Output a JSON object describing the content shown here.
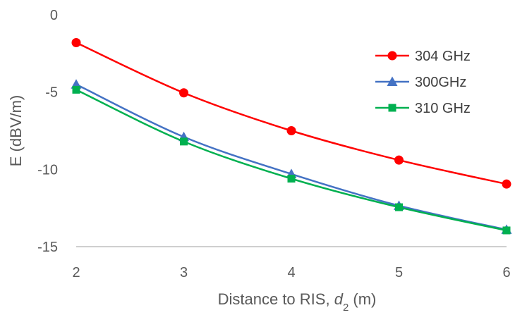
{
  "chart_data": {
    "type": "line",
    "title": "",
    "xlabel": "Distance to RIS, d2 (m)",
    "xlabel_parts": {
      "prefix": "Distance to RIS, ",
      "var": "d",
      "sub": "2",
      "suffix": " (m)"
    },
    "ylabel": "E (dBV/m)",
    "x": [
      2,
      3,
      4,
      5,
      6
    ],
    "xlim": [
      2,
      6
    ],
    "ylim": [
      -15,
      0
    ],
    "yticks": [
      0,
      -5,
      -10,
      -15
    ],
    "xticks": [
      2,
      3,
      4,
      5,
      6
    ],
    "grid": false,
    "legend_position": "top-right",
    "series": [
      {
        "name": "304 GHz",
        "color": "#ff0000",
        "marker": "circle",
        "values": [
          -1.8,
          -5.05,
          -7.5,
          -9.4,
          -10.95
        ]
      },
      {
        "name": "300GHz",
        "color": "#4472c4",
        "marker": "triangle",
        "values": [
          -4.5,
          -7.9,
          -10.3,
          -12.35,
          -13.9
        ]
      },
      {
        "name": "310 GHz",
        "color": "#00b050",
        "marker": "square",
        "values": [
          -4.85,
          -8.2,
          -10.6,
          -12.45,
          -13.95
        ]
      }
    ]
  }
}
